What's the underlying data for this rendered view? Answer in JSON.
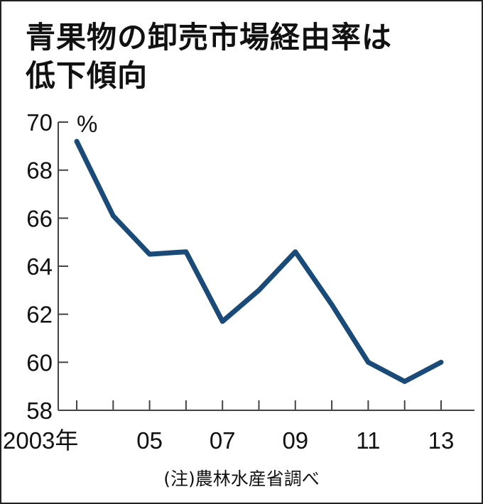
{
  "title_line1": "青果物の卸売市場経由率は",
  "title_line2": "低下傾向",
  "unit": "%",
  "source_note": "(注)農林水産省調べ",
  "colors": {
    "line": "#1a4a78",
    "axis": "#444444",
    "text": "#111111"
  },
  "chart_data": {
    "type": "line",
    "title": "青果物の卸売市場経由率は低下傾向",
    "xlabel": "",
    "ylabel": "%",
    "x": [
      2003,
      2004,
      2005,
      2006,
      2007,
      2008,
      2009,
      2010,
      2011,
      2012,
      2013
    ],
    "series": [
      {
        "name": "卸売市場経由率",
        "values": [
          69.2,
          66.1,
          64.5,
          64.6,
          61.7,
          63.0,
          64.6,
          62.4,
          60.0,
          59.2,
          60.0
        ]
      }
    ],
    "ylim": [
      58,
      70
    ],
    "yticks": [
      58,
      60,
      62,
      64,
      66,
      68,
      70
    ],
    "xtick_labels": [
      "2003年",
      "05",
      "07",
      "09",
      "11",
      "13"
    ],
    "grid": false,
    "legend": "none",
    "annotation": "(注)農林水産省調べ"
  }
}
